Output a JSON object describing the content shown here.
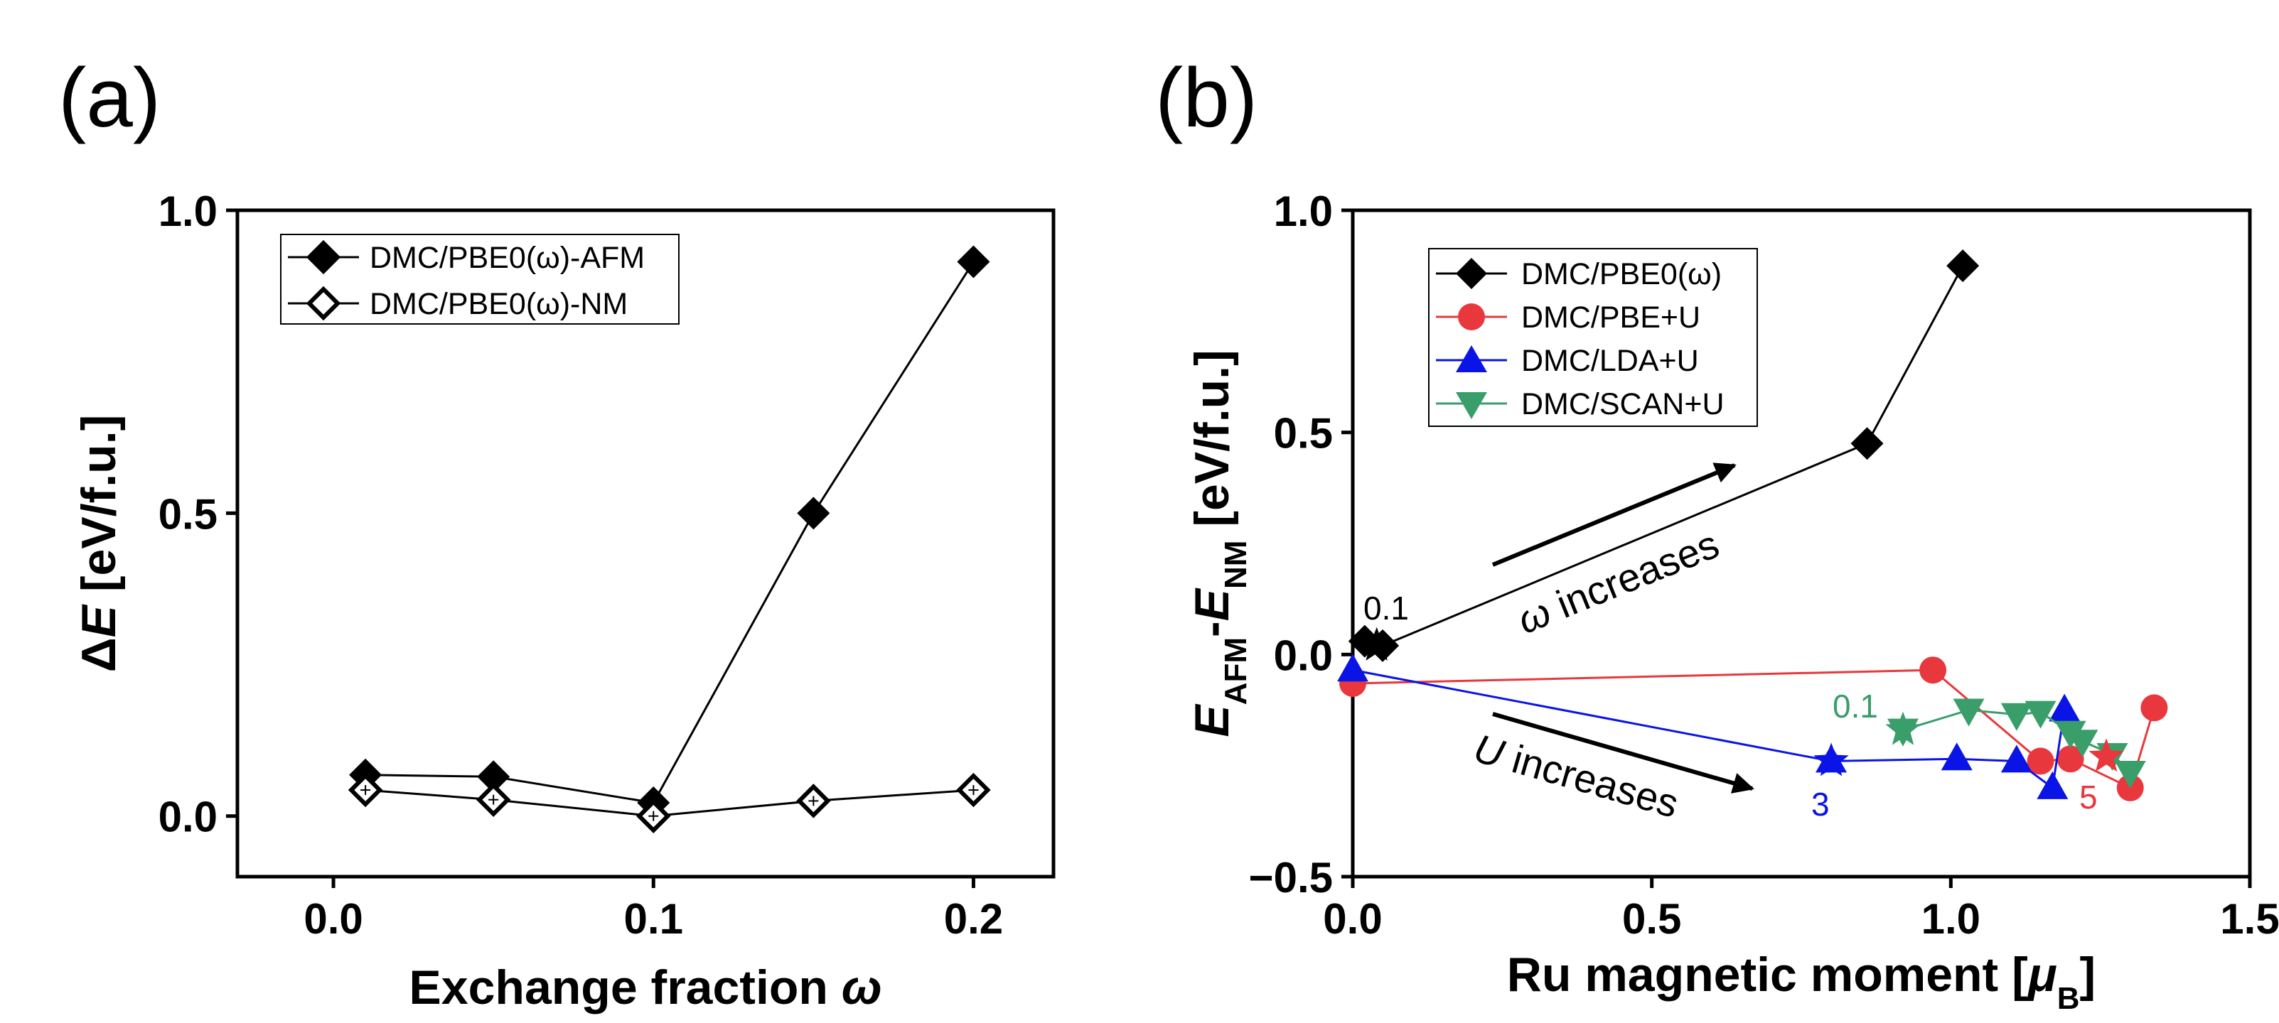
{
  "panels": [
    {
      "label": "(a)"
    },
    {
      "label": "(b)"
    }
  ],
  "chart_data": [
    {
      "type": "line",
      "panel": "(a)",
      "xlabel": "Exchange fraction ω",
      "ylabel": "ΔE [eV/f.u.]",
      "xlim": [
        -0.03,
        0.225
      ],
      "ylim": [
        -0.1,
        1.0
      ],
      "xticks": [
        0.0,
        0.1,
        0.2
      ],
      "xtick_labels": [
        "0.0",
        "0.1",
        "0.2"
      ],
      "yticks": [
        0.0,
        0.5,
        1.0
      ],
      "ytick_labels": [
        "0.0",
        "0.5",
        "1.0"
      ],
      "legend_position": "top-left",
      "series": [
        {
          "name": "DMC/PBE0(ω)-AFM",
          "color": "#000000",
          "marker": "diamond-filled",
          "points": [
            [
              0.01,
              0.068
            ],
            [
              0.05,
              0.065
            ],
            [
              0.1,
              0.022
            ],
            [
              0.15,
              0.5
            ],
            [
              0.2,
              0.915
            ]
          ]
        },
        {
          "name": "DMC/PBE0(ω)-NM",
          "color": "#000000",
          "marker": "diamond-open",
          "points": [
            [
              0.01,
              0.043
            ],
            [
              0.05,
              0.027
            ],
            [
              0.1,
              0.0
            ],
            [
              0.15,
              0.025
            ],
            [
              0.2,
              0.043
            ]
          ]
        }
      ]
    },
    {
      "type": "scatter",
      "panel": "(b)",
      "xlabel": "Ru magnetic moment [μB]",
      "ylabel": "E_AFM - E_NM [eV/f.u.]",
      "xlim": [
        0.0,
        1.5
      ],
      "ylim": [
        -0.5,
        1.0
      ],
      "xticks": [
        0.0,
        0.5,
        1.0,
        1.5
      ],
      "xtick_labels": [
        "0.0",
        "0.5",
        "1.0",
        "1.5"
      ],
      "yticks": [
        -0.5,
        0.0,
        0.5,
        1.0
      ],
      "ytick_labels": [
        "−0.5",
        "0.0",
        "0.5",
        "1.0"
      ],
      "legend_position": "top-left",
      "series": [
        {
          "name": "DMC/PBE0(ω)",
          "color": "#000000",
          "marker": "diamond",
          "points": [
            [
              0.02,
              0.03
            ],
            [
              0.05,
              0.02
            ],
            [
              0.86,
              0.475
            ],
            [
              1.02,
              0.875
            ]
          ]
        },
        {
          "name": "DMC/PBE+U",
          "color": "#e8383d",
          "marker": "circle",
          "points": [
            [
              0.0,
              -0.065
            ],
            [
              0.97,
              -0.035
            ],
            [
              1.15,
              -0.24
            ],
            [
              1.2,
              -0.235
            ],
            [
              1.3,
              -0.3
            ],
            [
              1.34,
              -0.12
            ]
          ]
        },
        {
          "name": "DMC/LDA+U",
          "color": "#0a14e6",
          "marker": "triangle-up",
          "points": [
            [
              0.0,
              -0.035
            ],
            [
              0.8,
              -0.24
            ],
            [
              1.01,
              -0.235
            ],
            [
              1.11,
              -0.24
            ],
            [
              1.17,
              -0.3
            ],
            [
              1.19,
              -0.125
            ]
          ]
        },
        {
          "name": "DMC/SCAN+U",
          "color": "#3a9e6a",
          "marker": "triangle-down",
          "points": [
            [
              0.92,
              -0.17
            ],
            [
              1.03,
              -0.125
            ],
            [
              1.11,
              -0.135
            ],
            [
              1.15,
              -0.13
            ],
            [
              1.2,
              -0.175
            ],
            [
              1.22,
              -0.195
            ],
            [
              1.27,
              -0.225
            ],
            [
              1.3,
              -0.265
            ]
          ]
        }
      ],
      "star_points": [
        {
          "color": "#000000",
          "point": [
            0.04,
            0.02
          ]
        },
        {
          "color": "#0a14e6",
          "point": [
            0.8,
            -0.24
          ]
        },
        {
          "color": "#3a9e6a",
          "point": [
            0.92,
            -0.17
          ]
        },
        {
          "color": "#e8383d",
          "point": [
            1.26,
            -0.23
          ]
        }
      ],
      "annotations": [
        {
          "text": "ω increases",
          "color": "#000000"
        },
        {
          "text": "U increases",
          "color": "#000000"
        },
        {
          "text": "0.1",
          "color": "#000000"
        },
        {
          "text": "0.1",
          "color": "#3a9e6a"
        },
        {
          "text": "3",
          "color": "#0a14e6"
        },
        {
          "text": "5",
          "color": "#e8383d"
        }
      ]
    }
  ]
}
